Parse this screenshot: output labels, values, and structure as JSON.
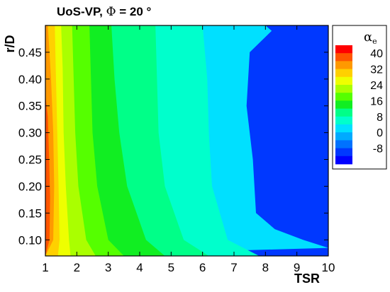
{
  "chart_data": {
    "type": "contour",
    "title_main": "UoS-VP, ",
    "title_symbol": "Φ",
    "title_rest": " = 20 °",
    "xlabel": "TSR",
    "ylabel": "r/D",
    "xlim": [
      1,
      10
    ],
    "ylim": [
      0.07,
      0.5
    ],
    "x_ticks": [
      "1",
      "2",
      "3",
      "4",
      "5",
      "6",
      "7",
      "8",
      "9",
      "10"
    ],
    "y_ticks": [
      "0.10",
      "0.15",
      "0.20",
      "0.25",
      "0.30",
      "0.35",
      "0.40",
      "0.45"
    ],
    "legend": {
      "title_symbol": "α",
      "title_subscript": "e",
      "labels": [
        "40",
        "32",
        "24",
        "16",
        "8",
        "0",
        "-8"
      ],
      "levels": [
        -12,
        -8,
        -4,
        0,
        4,
        8,
        12,
        16,
        20,
        24,
        28,
        32,
        36,
        40,
        44
      ],
      "colors": [
        "#0000ff",
        "#0038ff",
        "#0072ff",
        "#00aaff",
        "#00e0ff",
        "#00ffcc",
        "#00ff88",
        "#11ee22",
        "#55ff00",
        "#aaff00",
        "#eeff00",
        "#ffd000",
        "#ff9900",
        "#ff5500",
        "#ff0000"
      ]
    },
    "contour_boundaries": [
      {
        "value": 40,
        "points": [
          [
            1.0,
            0.07
          ],
          [
            1.13,
            0.1
          ],
          [
            1.15,
            0.18
          ],
          [
            1.12,
            0.25
          ],
          [
            1.08,
            0.33
          ],
          [
            1.0,
            0.37
          ]
        ]
      },
      {
        "value": 36,
        "points": [
          [
            1.0,
            0.07
          ],
          [
            1.25,
            0.1
          ],
          [
            1.28,
            0.2
          ],
          [
            1.25,
            0.3
          ],
          [
            1.18,
            0.4
          ],
          [
            1.08,
            0.5
          ]
        ]
      },
      {
        "value": 32,
        "points": [
          [
            1.4,
            0.07
          ],
          [
            1.45,
            0.1
          ],
          [
            1.42,
            0.2
          ],
          [
            1.38,
            0.3
          ],
          [
            1.33,
            0.42
          ],
          [
            1.3,
            0.5
          ]
        ]
      },
      {
        "value": 28,
        "points": [
          [
            1.8,
            0.07
          ],
          [
            1.75,
            0.1
          ],
          [
            1.65,
            0.2
          ],
          [
            1.58,
            0.3
          ],
          [
            1.55,
            0.42
          ],
          [
            1.5,
            0.5
          ]
        ]
      },
      {
        "value": 24,
        "points": [
          [
            2.6,
            0.07
          ],
          [
            2.3,
            0.1
          ],
          [
            2.05,
            0.2
          ],
          [
            1.95,
            0.3
          ],
          [
            1.9,
            0.4
          ],
          [
            1.85,
            0.5
          ]
        ]
      },
      {
        "value": 20,
        "points": [
          [
            3.5,
            0.07
          ],
          [
            3.0,
            0.1
          ],
          [
            2.65,
            0.2
          ],
          [
            2.5,
            0.3
          ],
          [
            2.45,
            0.4
          ],
          [
            2.4,
            0.5
          ]
        ]
      },
      {
        "value": 16,
        "points": [
          [
            4.8,
            0.07
          ],
          [
            4.2,
            0.1
          ],
          [
            3.6,
            0.2
          ],
          [
            3.35,
            0.3
          ],
          [
            3.2,
            0.4
          ],
          [
            3.1,
            0.5
          ]
        ]
      },
      {
        "value": 12,
        "points": [
          [
            6.2,
            0.07
          ],
          [
            5.4,
            0.1
          ],
          [
            4.8,
            0.2
          ],
          [
            4.6,
            0.3
          ],
          [
            4.55,
            0.4
          ],
          [
            4.5,
            0.5
          ]
        ]
      },
      {
        "value": 8,
        "points": [
          [
            7.8,
            0.07
          ],
          [
            6.8,
            0.1
          ],
          [
            6.3,
            0.2
          ],
          [
            6.2,
            0.3
          ],
          [
            6.15,
            0.4
          ],
          [
            6.0,
            0.5
          ]
        ]
      },
      {
        "value": 4,
        "points": [
          [
            10.0,
            0.085
          ],
          [
            9.2,
            0.1
          ],
          [
            8.3,
            0.12
          ],
          [
            7.7,
            0.15
          ],
          [
            7.6,
            0.25
          ],
          [
            7.4,
            0.35
          ],
          [
            7.5,
            0.45
          ],
          [
            8.2,
            0.49
          ],
          [
            8.0,
            0.5
          ]
        ]
      }
    ]
  }
}
